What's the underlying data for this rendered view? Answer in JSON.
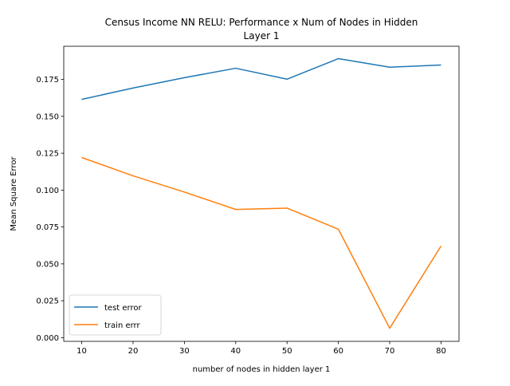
{
  "chart_data": {
    "type": "line",
    "title_lines": [
      "Census Income NN RELU: Performance x Num of  Nodes in Hidden",
      "Layer 1"
    ],
    "xlabel": "number of nodes in hidden layer 1",
    "ylabel": "Mean Square Error",
    "x": [
      10,
      20,
      30,
      40,
      50,
      60,
      70,
      80
    ],
    "xlim": [
      6.5,
      83.5
    ],
    "ylim": [
      -0.0025,
      0.1975
    ],
    "xticks": [
      10,
      20,
      30,
      40,
      50,
      60,
      70,
      80
    ],
    "yticks": [
      0.0,
      0.025,
      0.05,
      0.075,
      0.1,
      0.125,
      0.15,
      0.175
    ],
    "ytick_labels": [
      "0.000",
      "0.025",
      "0.050",
      "0.075",
      "0.100",
      "0.125",
      "0.150",
      "0.175"
    ],
    "grid": false,
    "legend_position": "lower-left",
    "series": [
      {
        "name": "test error",
        "color": "#1f77b4",
        "values": [
          0.1615,
          0.1692,
          0.1762,
          0.1826,
          0.1752,
          0.1891,
          0.1833,
          0.1848
        ]
      },
      {
        "name": "train errr",
        "color": "#ff7f0e",
        "values": [
          0.1221,
          0.1097,
          0.0987,
          0.0869,
          0.0878,
          0.0735,
          0.0064,
          0.0621
        ]
      }
    ]
  }
}
